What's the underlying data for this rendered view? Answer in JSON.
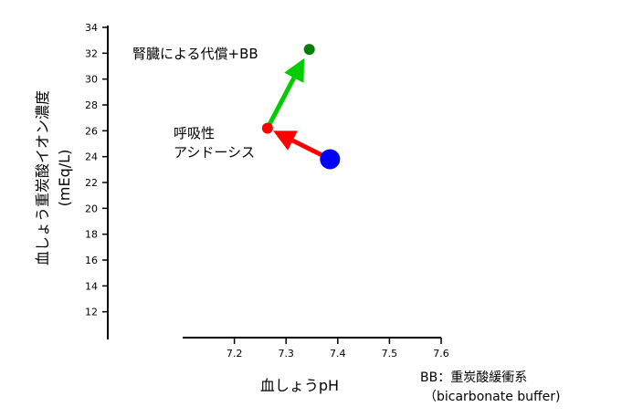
{
  "chart_data": {
    "type": "scatter",
    "xlabel": "血しょうpH",
    "ylabel": "血しょう重炭酸イオン濃度",
    "ylabel_unit": "(mEq/L)",
    "xlim": [
      7.1,
      7.6
    ],
    "ylim": [
      10,
      34
    ],
    "x_ticks": [
      7.2,
      7.3,
      7.4,
      7.5,
      7.6
    ],
    "x_tick_labels": [
      "7.2",
      "7.3",
      "7.4",
      "7.5",
      "7.6"
    ],
    "y_ticks": [
      12,
      14,
      16,
      18,
      20,
      22,
      24,
      26,
      28,
      30,
      32,
      34
    ],
    "y_tick_labels": [
      "12",
      "14",
      "16",
      "18",
      "20",
      "22",
      "24",
      "26",
      "28",
      "30",
      "32",
      "34"
    ],
    "grid": false,
    "points": [
      {
        "x": 7.385,
        "y": 23.8,
        "color": "#0000ff",
        "size": "large"
      },
      {
        "x": 7.264,
        "y": 26.2,
        "color": "#ff0000",
        "size": "small"
      },
      {
        "x": 7.345,
        "y": 32.3,
        "color": "#008000",
        "size": "small"
      }
    ],
    "arrows": [
      {
        "from": [
          7.375,
          24.0
        ],
        "to": [
          7.275,
          26.0
        ],
        "color": "#ff0000"
      },
      {
        "from": [
          7.268,
          26.5
        ],
        "to": [
          7.335,
          31.6
        ],
        "color": "#00cc00"
      }
    ],
    "annotations": {
      "respiratory_line1": "呼吸性",
      "respiratory_line2": "アシドーシス",
      "renal": "腎臓による代償+BB"
    },
    "footnote": {
      "line1": "BB：重炭酸緩衝系",
      "line2": "（bicarbonate buffer)"
    }
  }
}
